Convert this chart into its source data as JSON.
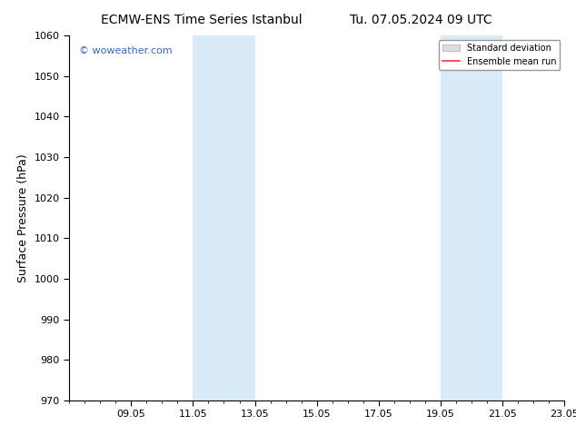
{
  "title_left": "ECMW-ENS Time Series Istanbul",
  "title_right": "Tu. 07.05.2024 09 UTC",
  "ylabel": "Surface Pressure (hPa)",
  "ylim": [
    970,
    1060
  ],
  "yticks": [
    970,
    980,
    990,
    1000,
    1010,
    1020,
    1030,
    1040,
    1050,
    1060
  ],
  "xticks_labels": [
    "09.05",
    "11.05",
    "13.05",
    "15.05",
    "17.05",
    "19.05",
    "21.05",
    "23.05"
  ],
  "xticks_positions": [
    2,
    4,
    6,
    8,
    10,
    12,
    14,
    16
  ],
  "xlim": [
    0,
    16
  ],
  "shaded_bands": [
    {
      "xmin": 4,
      "xmax": 6
    },
    {
      "xmin": 12,
      "xmax": 14
    }
  ],
  "shade_color": "#daeaf7",
  "background_color": "#ffffff",
  "watermark_text": "© woweather.com",
  "watermark_color": "#3366cc",
  "title_fontsize": 10,
  "ylabel_fontsize": 9,
  "tick_fontsize": 8,
  "watermark_fontsize": 8,
  "legend_fontsize": 7,
  "grid_color": "#cccccc",
  "border_color": "#000000",
  "shade_linecolor": "#aaccee"
}
